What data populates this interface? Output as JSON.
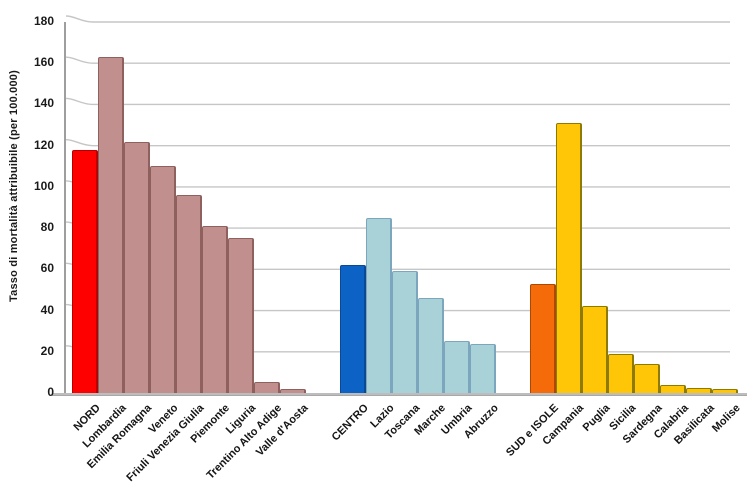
{
  "chart_data": {
    "type": "bar",
    "title": "",
    "xlabel": "",
    "ylabel": "Tasso di mortalità attribuibile (per 100.000)",
    "ylim": [
      0,
      180
    ],
    "ytick_step": 20,
    "yticks": [
      0,
      20,
      40,
      60,
      80,
      100,
      120,
      140,
      160,
      180
    ],
    "grid": true,
    "legend": "none",
    "colors": {
      "grid": "#c6c6c6",
      "axis": "#9e9e9e",
      "baseline": "#bdbdbd",
      "text": "#1a1a1a"
    },
    "groups": [
      {
        "name": "NORD",
        "summary_fill": "#fe0000",
        "summary_edge": "#b40000",
        "member_fill": "#c18f8d",
        "member_edge": "#8e605e",
        "bars": [
          {
            "label": "NORD",
            "value": 118
          },
          {
            "label": "Lombardia",
            "value": 163
          },
          {
            "label": "Emilia Romagna",
            "value": 122
          },
          {
            "label": "Veneto",
            "value": 110
          },
          {
            "label": "Friuli Venezia Giulia",
            "value": 96
          },
          {
            "label": "Piemonte",
            "value": 81
          },
          {
            "label": "Liguria",
            "value": 75
          },
          {
            "label": "Trentino Alto Adige",
            "value": 5.5
          },
          {
            "label": "Valle d'Aosta",
            "value": 2
          }
        ]
      },
      {
        "name": "CENTRO",
        "summary_fill": "#0d63c5",
        "summary_edge": "#0a4a94",
        "member_fill": "#a9d2d8",
        "member_edge": "#7ba6bd",
        "bars": [
          {
            "label": "CENTRO",
            "value": 62
          },
          {
            "label": "Lazio",
            "value": 85
          },
          {
            "label": "Toscana",
            "value": 59
          },
          {
            "label": "Marche",
            "value": 46
          },
          {
            "label": "Umbria",
            "value": 25
          },
          {
            "label": "Abruzzo",
            "value": 24
          }
        ]
      },
      {
        "name": "SUD e ISOLE",
        "summary_fill": "#f56b09",
        "summary_edge": "#aa4a00",
        "member_fill": "#ffc608",
        "member_edge": "#8f7a00",
        "bars": [
          {
            "label": "SUD e ISOLE",
            "value": 53
          },
          {
            "label": "Campania",
            "value": 131
          },
          {
            "label": "Puglia",
            "value": 42
          },
          {
            "label": "Sicilia",
            "value": 19
          },
          {
            "label": "Sardegna",
            "value": 14
          },
          {
            "label": "Calabria",
            "value": 4
          },
          {
            "label": "Basilicata",
            "value": 2.5
          },
          {
            "label": "Molise",
            "value": 2
          }
        ]
      }
    ]
  }
}
